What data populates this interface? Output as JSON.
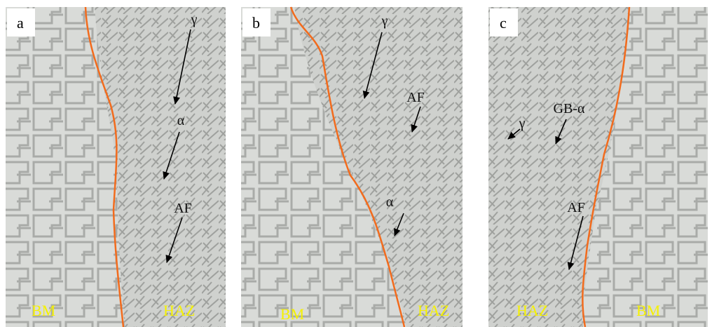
{
  "panels": [
    {
      "label": "a",
      "annotations": [
        "γ",
        "α",
        "AF"
      ],
      "regions": [
        "BM",
        "HAZ"
      ]
    },
    {
      "label": "b",
      "annotations": [
        "γ",
        "AF",
        "α"
      ],
      "regions": [
        "BM",
        "HAZ"
      ]
    },
    {
      "label": "c",
      "annotations": [
        "γ",
        "GB-α",
        "AF"
      ],
      "regions": [
        "HAZ",
        "BM"
      ]
    }
  ]
}
